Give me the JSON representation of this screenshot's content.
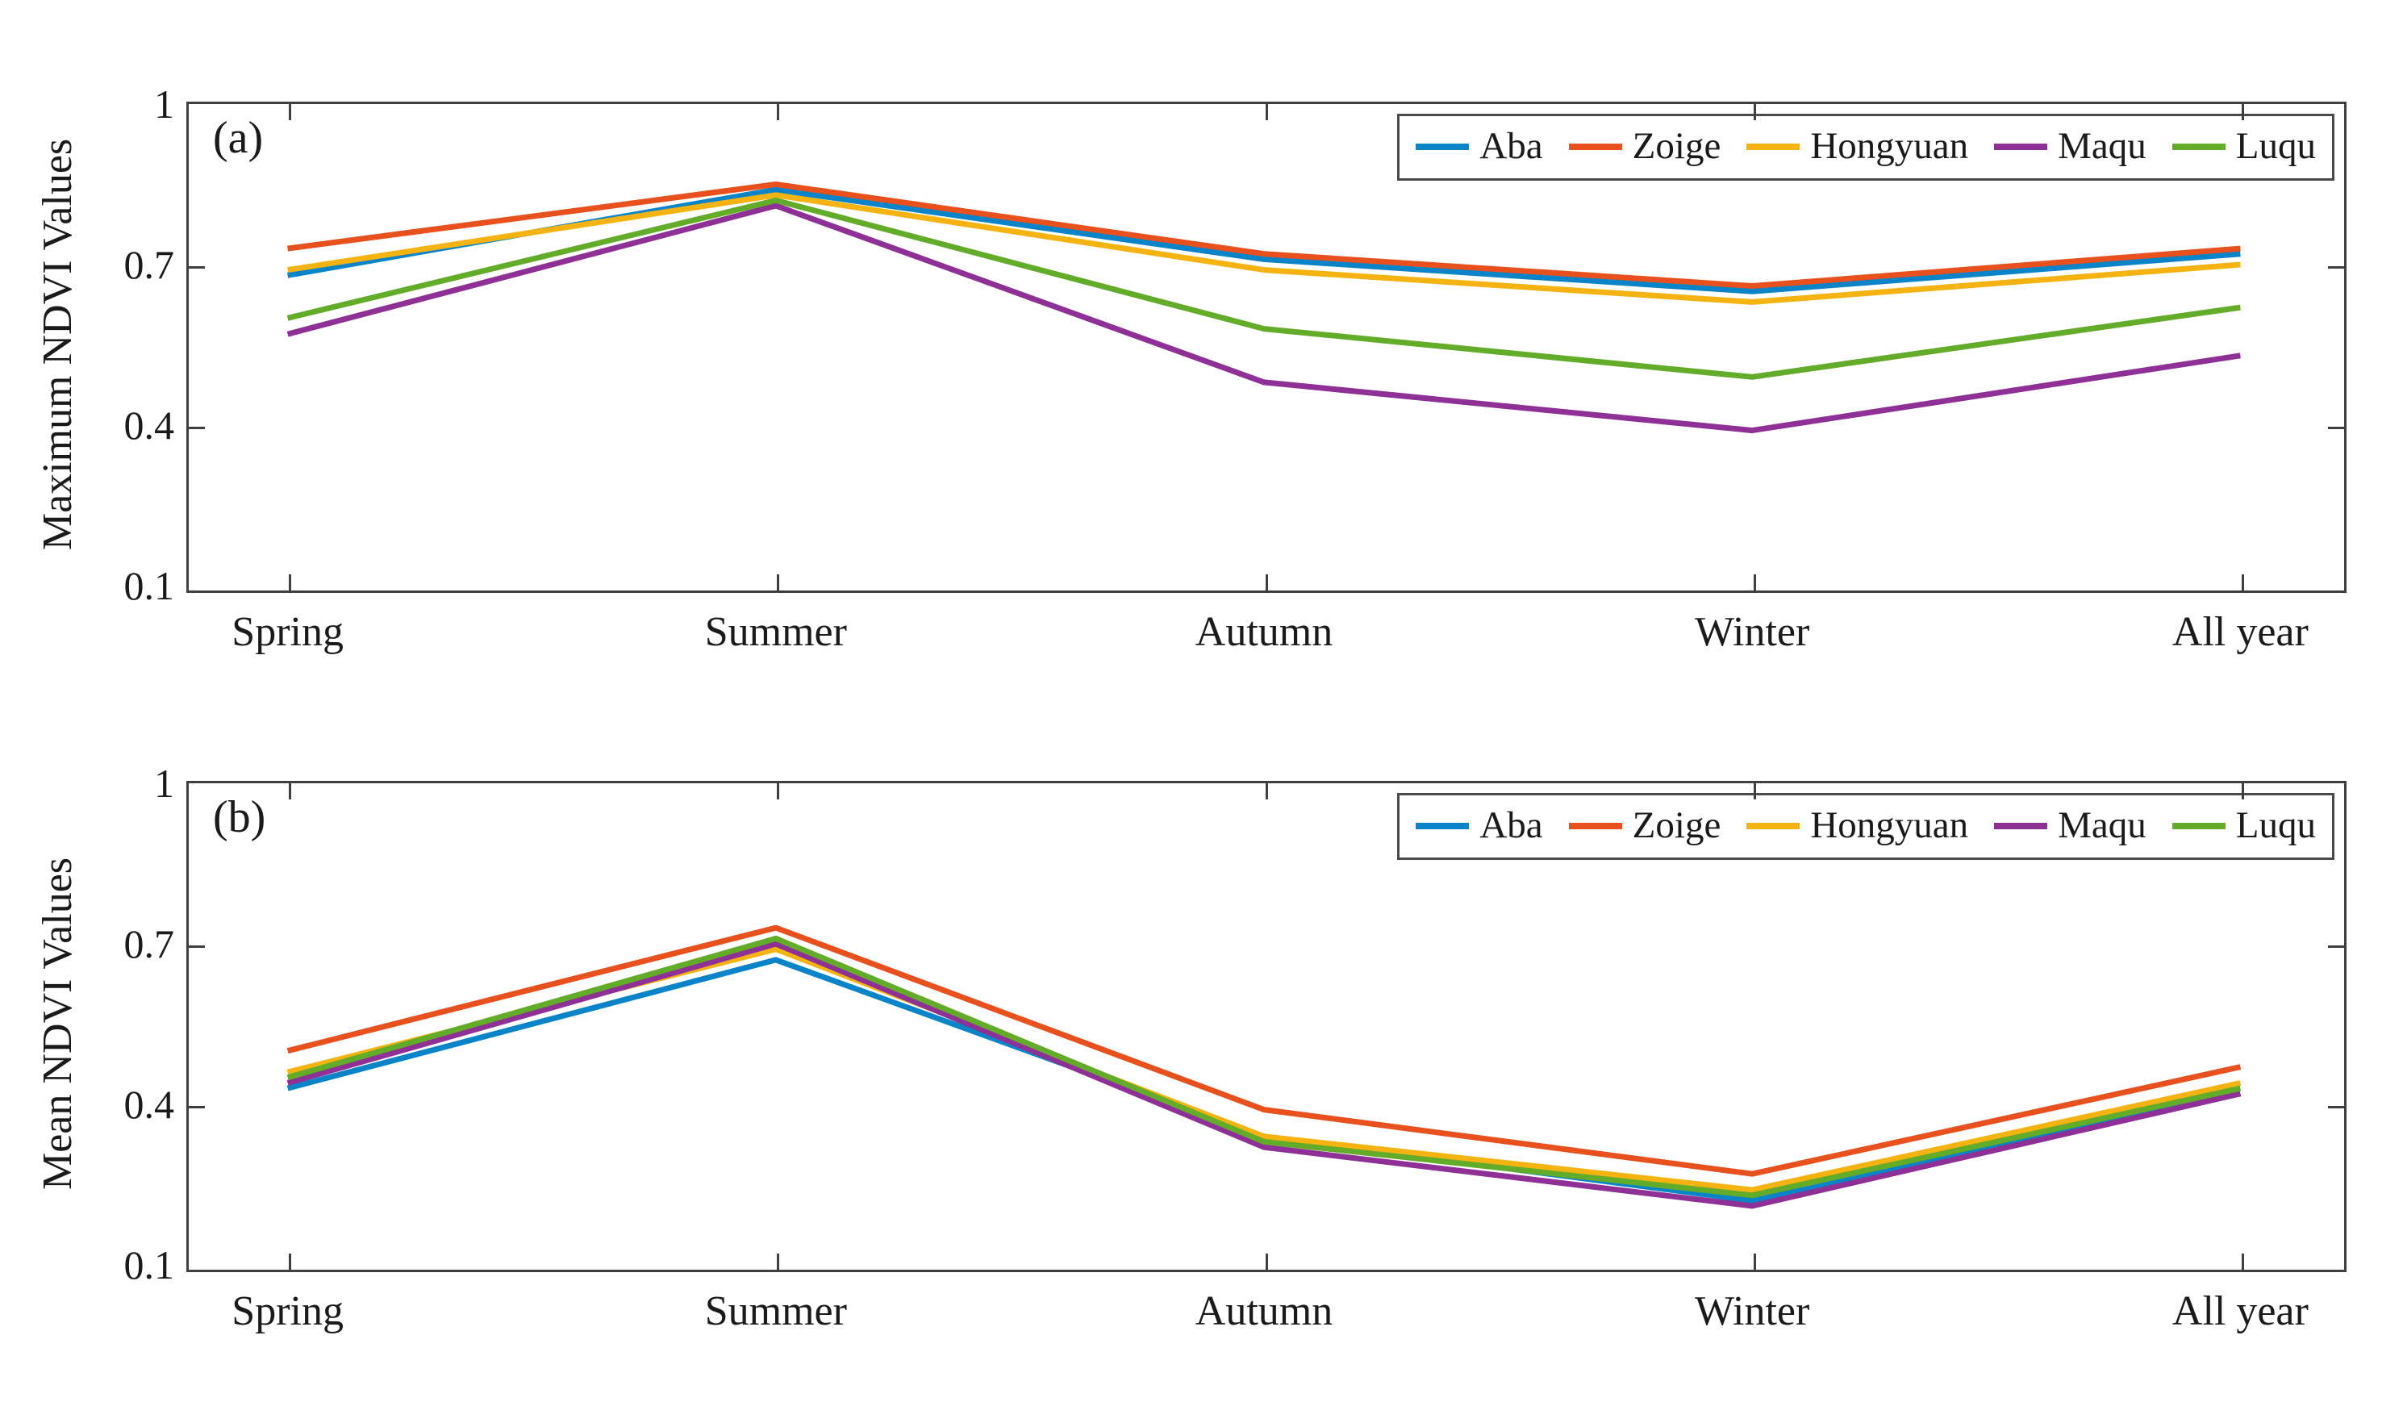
{
  "figure": {
    "background": "#ffffff",
    "axis_color": "#3f3f3f",
    "panels": [
      "(a)",
      "(b)"
    ]
  },
  "chart_data": [
    {
      "type": "line",
      "panel_label": "(a)",
      "ylabel": "Maximum NDVI Values",
      "xlabel": "",
      "title": "",
      "categories": [
        "Spring",
        "Summer",
        "Autumn",
        "Winter",
        "All year"
      ],
      "ylim": [
        0.1,
        1
      ],
      "yticks": [
        1,
        0.7,
        0.4,
        0.1
      ],
      "grid": false,
      "legend_position": "top-right",
      "series": [
        {
          "name": "Aba",
          "color": "#0984c8",
          "values": [
            0.68,
            0.84,
            0.71,
            0.65,
            0.72
          ]
        },
        {
          "name": "Zoige",
          "color": "#e8501e",
          "values": [
            0.73,
            0.85,
            0.72,
            0.66,
            0.73
          ]
        },
        {
          "name": "Hongyuan",
          "color": "#f5b312",
          "values": [
            0.69,
            0.83,
            0.69,
            0.63,
            0.7
          ]
        },
        {
          "name": "Maqu",
          "color": "#8e3096",
          "values": [
            0.57,
            0.81,
            0.48,
            0.39,
            0.53
          ]
        },
        {
          "name": "Luqu",
          "color": "#63ac29",
          "values": [
            0.6,
            0.82,
            0.58,
            0.49,
            0.62
          ]
        }
      ]
    },
    {
      "type": "line",
      "panel_label": "(b)",
      "ylabel": "Mean NDVI  Values",
      "xlabel": "",
      "title": "",
      "categories": [
        "Spring",
        "Summer",
        "Autumn",
        "Winter",
        "All year"
      ],
      "ylim": [
        0.1,
        1
      ],
      "yticks": [
        1,
        0.7,
        0.4,
        0.1
      ],
      "grid": false,
      "legend_position": "top-right",
      "series": [
        {
          "name": "Aba",
          "color": "#0984c8",
          "values": [
            0.43,
            0.67,
            0.34,
            0.22,
            0.42
          ]
        },
        {
          "name": "Zoige",
          "color": "#e8501e",
          "values": [
            0.5,
            0.73,
            0.39,
            0.27,
            0.47
          ]
        },
        {
          "name": "Hongyuan",
          "color": "#f5b312",
          "values": [
            0.46,
            0.69,
            0.34,
            0.24,
            0.44
          ]
        },
        {
          "name": "Maqu",
          "color": "#8e3096",
          "values": [
            0.44,
            0.7,
            0.32,
            0.21,
            0.42
          ]
        },
        {
          "name": "Luqu",
          "color": "#63ac29",
          "values": [
            0.45,
            0.71,
            0.33,
            0.23,
            0.43
          ]
        }
      ]
    }
  ]
}
